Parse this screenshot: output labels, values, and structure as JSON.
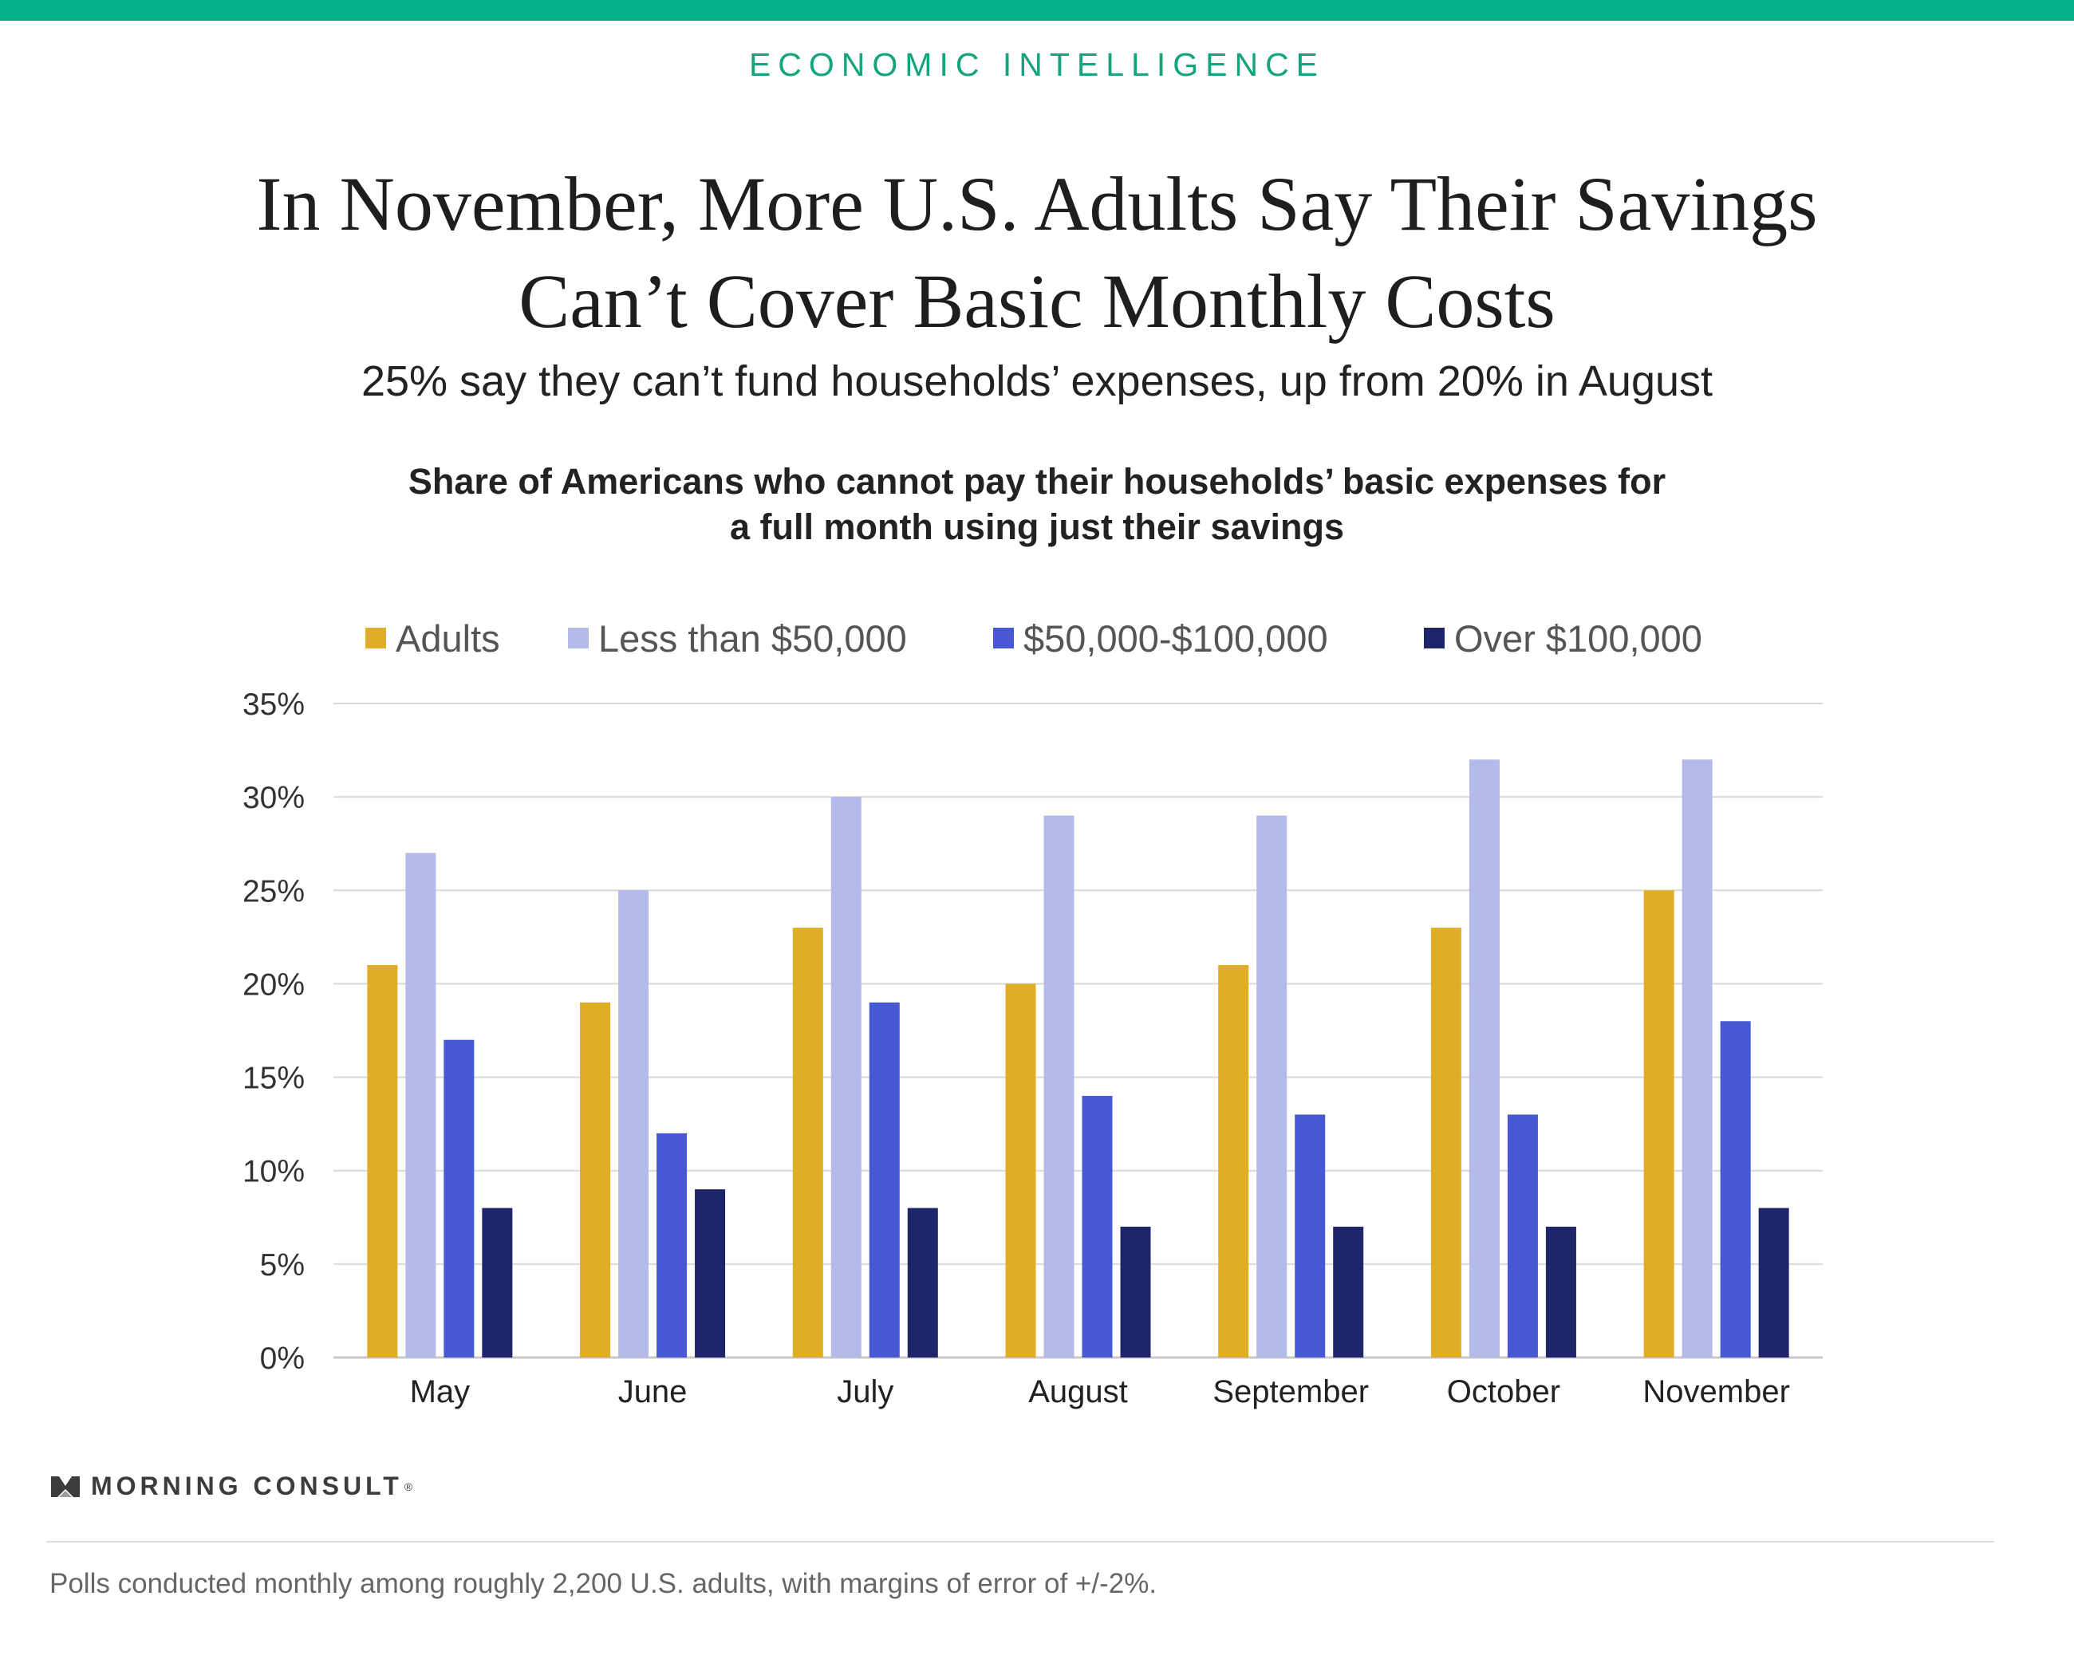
{
  "header": {
    "kicker": "ECONOMIC INTELLIGENCE",
    "headline_line1": "In November, More U.S. Adults Say Their Savings",
    "headline_line2": "Can’t Cover Basic Monthly Costs",
    "subtitle": "25% say they can’t fund households’ expenses, up from 20% in August"
  },
  "colors": {
    "accent": "#05b088",
    "adults": "#e0ae26",
    "less_than_50k": "#b4baea",
    "mid_income": "#4659d2",
    "over_100k": "#1e2669",
    "grid": "#d9d9d9"
  },
  "chart_data": {
    "type": "bar",
    "title": "Share of Americans who cannot pay their households’ basic expenses for a full month using just their savings",
    "categories": [
      "May",
      "June",
      "July",
      "August",
      "September",
      "October",
      "November"
    ],
    "series": [
      {
        "name": "Adults",
        "color": "#e0ae26",
        "values": [
          21,
          19,
          23,
          20,
          21,
          23,
          25
        ]
      },
      {
        "name": "Less than $50,000",
        "color": "#b4baea",
        "values": [
          27,
          25,
          30,
          29,
          29,
          32,
          32
        ]
      },
      {
        "name": "$50,000-$100,000",
        "color": "#4659d2",
        "values": [
          17,
          12,
          19,
          14,
          13,
          13,
          18
        ]
      },
      {
        "name": "Over $100,000",
        "color": "#1e2669",
        "values": [
          8,
          9,
          8,
          7,
          7,
          7,
          8
        ]
      }
    ],
    "ylim": [
      0,
      35
    ],
    "yticks": [
      "0%",
      "5%",
      "10%",
      "15%",
      "20%",
      "25%",
      "30%",
      "35%"
    ],
    "legend_position": "top",
    "grid": true
  },
  "footer": {
    "brand": "MORNING CONSULT",
    "brand_mark": "®",
    "note": "Polls conducted monthly among roughly 2,200 U.S. adults, with margins of error of +/-2%."
  }
}
